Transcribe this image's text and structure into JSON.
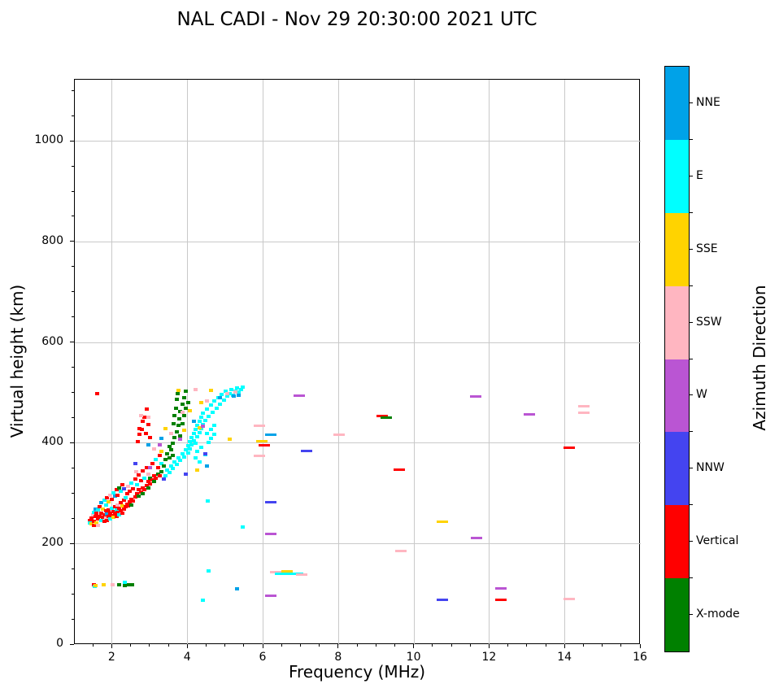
{
  "figure": {
    "background": "#ffffff"
  },
  "chart_data": {
    "type": "scatter",
    "title": "NAL CADI - Nov 29 20:30:00 2021 UTC",
    "xlabel": "Frequency (MHz)",
    "ylabel": "Virtual height (km)",
    "xlim": [
      1,
      16
    ],
    "ylim": [
      0,
      1123
    ],
    "x_major_ticks": [
      2,
      4,
      6,
      8,
      10,
      12,
      14,
      16
    ],
    "y_major_ticks": [
      0,
      200,
      400,
      600,
      800,
      1000
    ],
    "x_minor_step": 0.5,
    "y_minor_step": 50,
    "grid": true,
    "grid_color": "#c9c9c9",
    "directions": [
      "NNE",
      "E",
      "SSE",
      "SSW",
      "W",
      "NNW",
      "Vertical",
      "X-mode"
    ],
    "direction_colors": [
      "#00A2E8",
      "#00FFFF",
      "#FFD300",
      "#FFB6C1",
      "#BA55D3",
      "#4444F0",
      "#FF0000",
      "#008000"
    ],
    "colorbar": {
      "label": "Azimuth Direction",
      "entries_top_to_bottom": [
        {
          "label": "NNE",
          "color": "#00A2E8"
        },
        {
          "label": "E",
          "color": "#00FFFF"
        },
        {
          "label": "SSE",
          "color": "#FFD300"
        },
        {
          "label": "SSW",
          "color": "#FFB6C1"
        },
        {
          "label": "W",
          "color": "#BA55D3"
        },
        {
          "label": "NNW",
          "color": "#4444F0"
        },
        {
          "label": "Vertical",
          "color": "#FF0000"
        },
        {
          "label": "X-mode",
          "color": "#008000"
        }
      ]
    },
    "point_format": "[frequency_MHz, virtual_height_km, direction_index, wide_dash_flag?]",
    "points": [
      [
        1.4,
        248,
        6
      ],
      [
        1.4,
        243,
        1
      ],
      [
        1.45,
        252,
        6
      ],
      [
        1.45,
        240,
        2
      ],
      [
        1.48,
        258,
        3
      ],
      [
        1.5,
        246,
        6
      ],
      [
        1.5,
        263,
        1
      ],
      [
        1.5,
        237,
        6
      ],
      [
        1.55,
        255,
        6
      ],
      [
        1.55,
        270,
        0
      ],
      [
        1.58,
        243,
        2
      ],
      [
        1.58,
        262,
        6
      ],
      [
        1.62,
        250,
        6
      ],
      [
        1.62,
        268,
        1
      ],
      [
        1.62,
        238,
        3
      ],
      [
        1.66,
        256,
        6
      ],
      [
        1.66,
        275,
        6
      ],
      [
        1.7,
        248,
        1
      ],
      [
        1.7,
        262,
        6
      ],
      [
        1.7,
        282,
        0
      ],
      [
        1.74,
        253,
        6
      ],
      [
        1.74,
        270,
        2
      ],
      [
        1.78,
        246,
        6
      ],
      [
        1.78,
        259,
        6
      ],
      [
        1.78,
        287,
        1
      ],
      [
        1.82,
        252,
        3
      ],
      [
        1.82,
        266,
        6
      ],
      [
        1.82,
        278,
        1
      ],
      [
        1.86,
        248,
        6
      ],
      [
        1.86,
        260,
        0
      ],
      [
        1.86,
        292,
        6
      ],
      [
        1.9,
        255,
        6
      ],
      [
        1.9,
        268,
        6
      ],
      [
        1.9,
        285,
        2
      ],
      [
        1.94,
        250,
        1
      ],
      [
        1.94,
        262,
        6
      ],
      [
        1.94,
        297,
        3
      ],
      [
        1.98,
        257,
        6
      ],
      [
        1.98,
        272,
        1
      ],
      [
        1.98,
        290,
        6
      ],
      [
        2.02,
        253,
        2
      ],
      [
        2.02,
        265,
        6
      ],
      [
        2.02,
        302,
        1
      ],
      [
        2.06,
        260,
        6
      ],
      [
        2.06,
        274,
        6
      ],
      [
        2.06,
        295,
        0
      ],
      [
        2.1,
        256,
        6
      ],
      [
        2.1,
        268,
        1
      ],
      [
        2.1,
        308,
        6
      ],
      [
        2.14,
        263,
        6
      ],
      [
        2.14,
        278,
        3
      ],
      [
        2.14,
        298,
        6
      ],
      [
        2.18,
        259,
        1
      ],
      [
        2.18,
        272,
        6
      ],
      [
        2.18,
        312,
        7
      ],
      [
        2.22,
        266,
        6
      ],
      [
        2.22,
        282,
        6
      ],
      [
        2.22,
        305,
        1
      ],
      [
        2.26,
        262,
        6
      ],
      [
        2.26,
        276,
        2
      ],
      [
        2.26,
        318,
        6
      ],
      [
        2.3,
        270,
        6
      ],
      [
        2.3,
        288,
        6
      ],
      [
        2.3,
        310,
        5
      ],
      [
        2.34,
        274,
        6
      ],
      [
        2.34,
        292,
        1
      ],
      [
        2.38,
        280,
        6
      ],
      [
        2.38,
        300,
        6
      ],
      [
        2.42,
        276,
        6
      ],
      [
        2.42,
        315,
        3
      ],
      [
        2.46,
        284,
        6
      ],
      [
        2.46,
        305,
        6
      ],
      [
        2.5,
        290,
        6
      ],
      [
        2.5,
        322,
        1
      ],
      [
        2.5,
        278,
        7
      ],
      [
        2.55,
        286,
        6
      ],
      [
        2.55,
        310,
        6
      ],
      [
        2.6,
        294,
        6
      ],
      [
        2.6,
        330,
        6
      ],
      [
        2.6,
        360,
        5
      ],
      [
        2.65,
        300,
        6
      ],
      [
        2.65,
        318,
        1
      ],
      [
        2.7,
        296,
        7
      ],
      [
        2.7,
        308,
        6
      ],
      [
        2.7,
        338,
        6
      ],
      [
        2.75,
        304,
        6
      ],
      [
        2.75,
        326,
        6
      ],
      [
        2.8,
        312,
        6
      ],
      [
        2.8,
        300,
        7
      ],
      [
        2.8,
        345,
        6
      ],
      [
        2.85,
        308,
        6
      ],
      [
        2.85,
        332,
        1
      ],
      [
        2.9,
        316,
        6
      ],
      [
        2.9,
        352,
        6
      ],
      [
        2.95,
        312,
        7
      ],
      [
        2.95,
        324,
        6
      ],
      [
        2.95,
        340,
        3
      ],
      [
        3.0,
        320,
        6
      ],
      [
        3.0,
        352,
        4
      ],
      [
        3.0,
        332,
        7
      ],
      [
        3.05,
        328,
        6
      ],
      [
        3.05,
        360,
        6
      ],
      [
        3.1,
        324,
        7
      ],
      [
        3.1,
        336,
        6
      ],
      [
        3.1,
        390,
        3
      ],
      [
        3.15,
        332,
        6
      ],
      [
        3.15,
        368,
        1
      ],
      [
        3.2,
        340,
        7
      ],
      [
        3.2,
        352,
        6
      ],
      [
        3.25,
        336,
        6
      ],
      [
        3.25,
        376,
        6
      ],
      [
        3.3,
        344,
        7
      ],
      [
        3.3,
        360,
        1
      ],
      [
        3.3,
        384,
        2
      ],
      [
        2.95,
        398,
        0
      ],
      [
        3.3,
        410,
        0
      ],
      [
        2.62,
        344,
        3
      ],
      [
        2.68,
        404,
        6
      ],
      [
        2.72,
        418,
        6
      ],
      [
        2.72,
        430,
        6
      ],
      [
        2.78,
        428,
        6
      ],
      [
        2.8,
        444,
        6
      ],
      [
        2.84,
        452,
        6
      ],
      [
        2.88,
        420,
        6
      ],
      [
        2.9,
        468,
        6
      ],
      [
        2.95,
        438,
        6
      ],
      [
        3.0,
        412,
        6
      ],
      [
        2.75,
        456,
        3
      ],
      [
        2.95,
        452,
        3
      ],
      [
        1.6,
        500,
        6
      ],
      [
        3.35,
        356,
        7
      ],
      [
        3.4,
        368,
        7
      ],
      [
        3.45,
        380,
        7
      ],
      [
        3.5,
        372,
        7
      ],
      [
        3.5,
        394,
        7
      ],
      [
        3.55,
        388,
        7
      ],
      [
        3.6,
        400,
        7
      ],
      [
        3.6,
        376,
        7
      ],
      [
        3.62,
        440,
        7
      ],
      [
        3.65,
        412,
        7
      ],
      [
        3.65,
        456,
        7
      ],
      [
        3.68,
        470,
        7
      ],
      [
        3.7,
        424,
        7
      ],
      [
        3.7,
        488,
        7
      ],
      [
        3.72,
        500,
        7
      ],
      [
        3.75,
        436,
        7
      ],
      [
        3.78,
        450,
        7
      ],
      [
        3.8,
        464,
        7
      ],
      [
        3.8,
        416,
        7
      ],
      [
        3.85,
        478,
        7
      ],
      [
        3.85,
        440,
        7
      ],
      [
        3.9,
        492,
        7
      ],
      [
        3.9,
        456,
        7
      ],
      [
        3.95,
        504,
        7
      ],
      [
        3.95,
        470,
        7
      ],
      [
        4.0,
        482,
        7
      ],
      [
        3.35,
        330,
        5
      ],
      [
        3.25,
        398,
        4
      ],
      [
        3.8,
        408,
        4
      ],
      [
        3.4,
        336,
        1
      ],
      [
        3.45,
        348,
        1
      ],
      [
        3.5,
        342,
        1
      ],
      [
        3.55,
        356,
        1
      ],
      [
        3.6,
        350,
        1
      ],
      [
        3.65,
        364,
        1
      ],
      [
        3.7,
        358,
        1
      ],
      [
        3.75,
        372,
        1
      ],
      [
        3.8,
        366,
        1
      ],
      [
        3.85,
        380,
        1
      ],
      [
        3.9,
        374,
        1
      ],
      [
        3.95,
        388,
        1
      ],
      [
        4.0,
        382,
        1
      ],
      [
        4.0,
        396,
        1
      ],
      [
        4.05,
        390,
        1
      ],
      [
        4.05,
        404,
        1
      ],
      [
        4.1,
        398,
        1
      ],
      [
        4.1,
        412,
        1
      ],
      [
        4.15,
        406,
        1
      ],
      [
        4.15,
        420,
        1
      ],
      [
        4.2,
        400,
        1
      ],
      [
        4.2,
        428,
        1
      ],
      [
        4.25,
        414,
        1
      ],
      [
        4.25,
        436,
        1
      ],
      [
        4.3,
        422,
        1
      ],
      [
        4.3,
        444,
        1
      ],
      [
        4.35,
        430,
        1
      ],
      [
        4.35,
        452,
        1
      ],
      [
        4.4,
        438,
        1
      ],
      [
        4.4,
        460,
        1
      ],
      [
        4.45,
        446,
        1
      ],
      [
        4.5,
        468,
        1
      ],
      [
        4.5,
        420,
        1
      ],
      [
        4.55,
        454,
        1
      ],
      [
        4.6,
        476,
        1
      ],
      [
        4.6,
        428,
        1
      ],
      [
        4.65,
        462,
        1
      ],
      [
        4.7,
        484,
        1
      ],
      [
        4.7,
        436,
        1
      ],
      [
        4.75,
        470,
        1
      ],
      [
        4.8,
        492,
        1
      ],
      [
        4.85,
        478,
        1
      ],
      [
        4.9,
        498,
        1
      ],
      [
        4.95,
        486,
        1
      ],
      [
        5.0,
        504,
        1
      ],
      [
        5.05,
        494,
        1
      ],
      [
        5.1,
        500,
        1
      ],
      [
        5.15,
        508,
        1
      ],
      [
        5.2,
        496,
        1
      ],
      [
        5.25,
        504,
        1
      ],
      [
        5.3,
        510,
        1
      ],
      [
        5.35,
        502,
        1
      ],
      [
        5.4,
        508,
        1
      ],
      [
        5.45,
        512,
        1
      ],
      [
        4.2,
        372,
        1
      ],
      [
        4.25,
        384,
        1
      ],
      [
        4.3,
        364,
        1
      ],
      [
        4.35,
        392,
        1
      ],
      [
        4.45,
        378,
        1
      ],
      [
        4.55,
        402,
        1
      ],
      [
        4.6,
        410,
        1
      ],
      [
        4.7,
        418,
        1
      ],
      [
        4.52,
        286,
        1
      ],
      [
        5.45,
        235,
        1
      ],
      [
        4.15,
        444,
        0
      ],
      [
        4.85,
        492,
        0
      ],
      [
        5.35,
        496,
        0
      ],
      [
        5.22,
        494,
        0
      ],
      [
        4.5,
        356,
        0
      ],
      [
        3.4,
        430,
        2
      ],
      [
        3.9,
        426,
        2
      ],
      [
        4.05,
        466,
        2
      ],
      [
        4.3,
        432,
        2
      ],
      [
        4.35,
        482,
        2
      ],
      [
        4.6,
        506,
        2
      ],
      [
        5.1,
        408,
        2
      ],
      [
        4.25,
        348,
        2
      ],
      [
        3.75,
        505,
        2
      ],
      [
        3.55,
        420,
        3
      ],
      [
        3.85,
        462,
        3
      ],
      [
        4.2,
        508,
        3
      ],
      [
        5.05,
        500,
        3
      ],
      [
        5.25,
        503,
        3
      ],
      [
        4.5,
        484,
        3
      ],
      [
        3.95,
        340,
        5
      ],
      [
        4.45,
        380,
        5
      ],
      [
        4.4,
        434,
        4
      ],
      [
        1.5,
        120,
        6
      ],
      [
        1.53,
        116,
        1
      ],
      [
        1.56,
        118,
        2
      ],
      [
        1.76,
        119,
        2
      ],
      [
        2.0,
        119,
        3
      ],
      [
        2.18,
        119,
        7
      ],
      [
        2.32,
        124,
        1
      ],
      [
        2.33,
        118,
        7
      ],
      [
        2.44,
        119,
        7
      ],
      [
        2.52,
        119,
        7
      ],
      [
        4.55,
        147,
        1
      ],
      [
        4.4,
        89,
        1
      ],
      [
        5.3,
        111,
        0
      ],
      [
        5.9,
        435,
        3,
        1
      ],
      [
        5.95,
        404,
        2,
        1
      ],
      [
        6.02,
        396,
        6,
        1
      ],
      [
        5.9,
        376,
        3,
        1
      ],
      [
        6.2,
        417,
        0,
        1
      ],
      [
        6.2,
        283,
        5,
        1
      ],
      [
        6.2,
        221,
        4,
        1
      ],
      [
        6.2,
        97,
        4,
        1
      ],
      [
        6.32,
        144,
        3,
        1
      ],
      [
        6.45,
        142,
        1,
        1
      ],
      [
        6.6,
        142,
        1,
        1
      ],
      [
        6.62,
        147,
        2,
        1
      ],
      [
        6.75,
        142,
        1,
        1
      ],
      [
        6.9,
        141,
        1,
        1
      ],
      [
        7.02,
        140,
        3,
        1
      ],
      [
        7.15,
        386,
        5,
        1
      ],
      [
        6.95,
        495,
        4,
        1
      ],
      [
        8.0,
        418,
        3,
        1
      ],
      [
        9.15,
        455,
        6,
        1
      ],
      [
        9.25,
        451,
        7,
        1
      ],
      [
        9.6,
        348,
        6,
        1
      ],
      [
        9.65,
        186,
        3,
        1
      ],
      [
        10.75,
        244,
        2,
        1
      ],
      [
        10.75,
        90,
        5,
        1
      ],
      [
        11.65,
        213,
        4,
        1
      ],
      [
        11.62,
        494,
        4,
        1
      ],
      [
        12.3,
        113,
        4,
        1
      ],
      [
        12.3,
        90,
        6,
        1
      ],
      [
        13.05,
        458,
        4,
        1
      ],
      [
        14.1,
        392,
        6,
        1
      ],
      [
        14.1,
        92,
        3,
        1
      ],
      [
        14.5,
        475,
        3,
        1
      ],
      [
        14.5,
        462,
        3,
        1
      ]
    ]
  }
}
